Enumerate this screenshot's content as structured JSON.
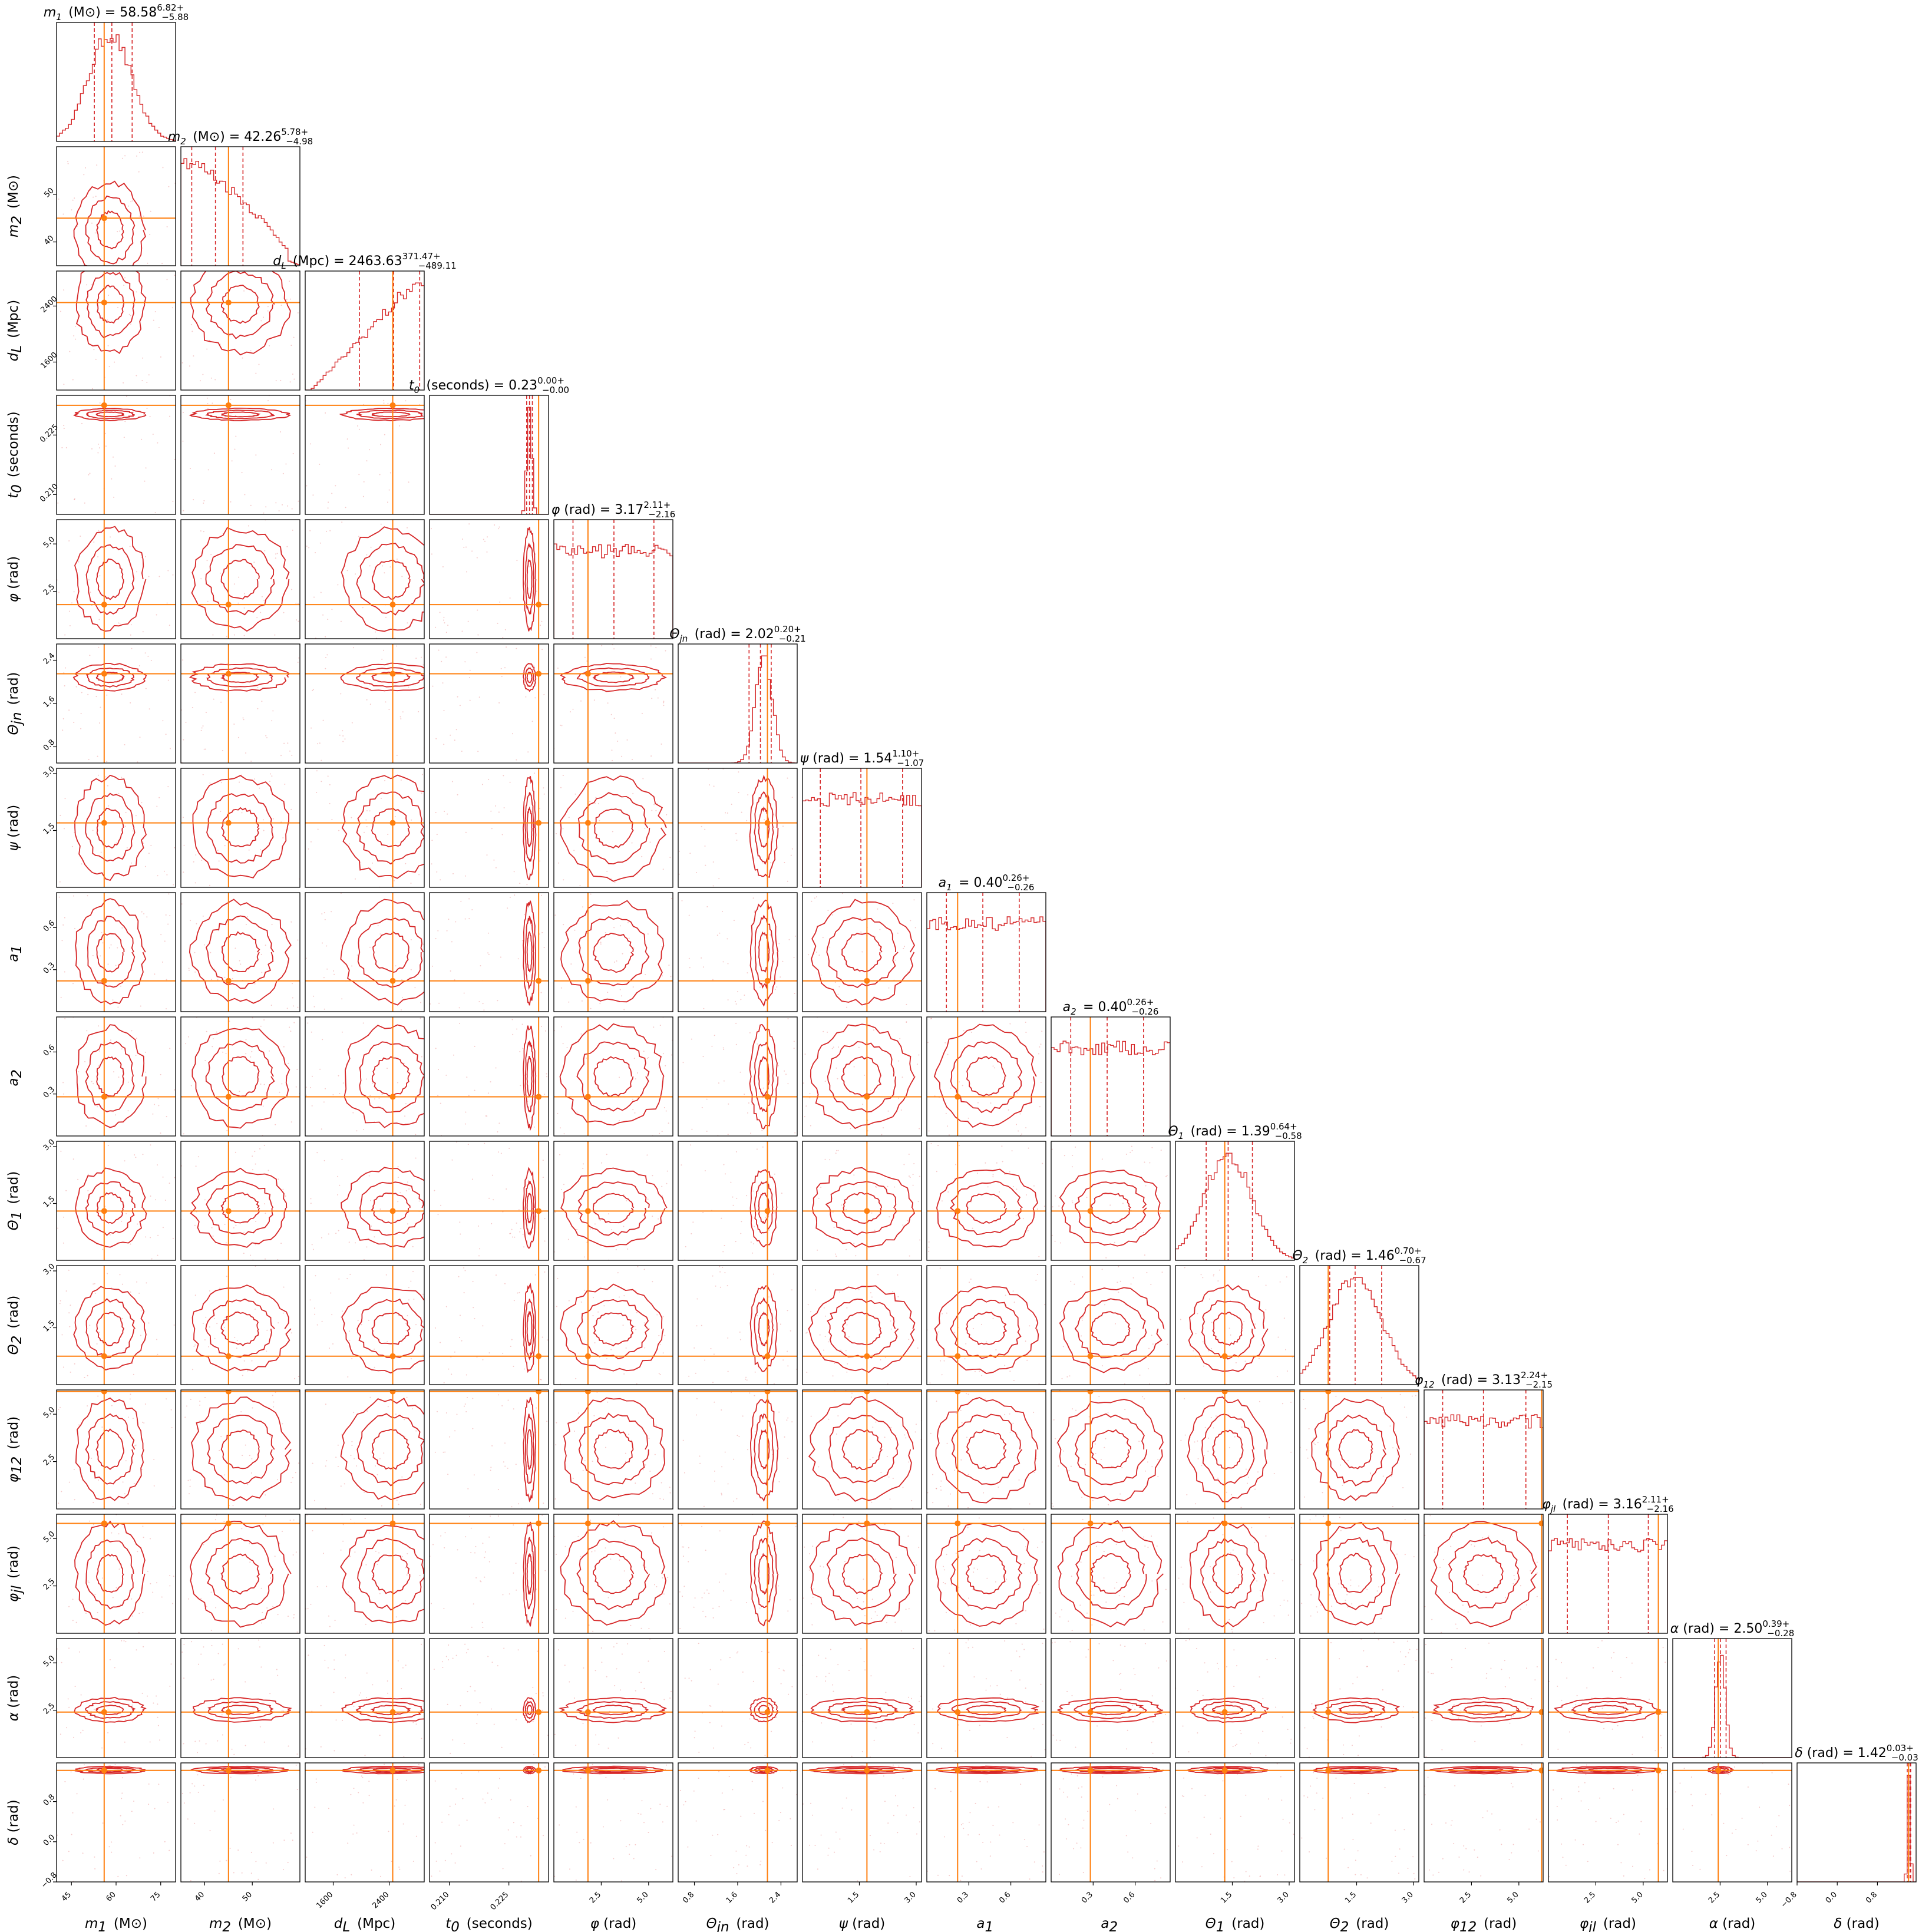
{
  "chart_data": {
    "type": "corner",
    "colors": {
      "posterior": "#d62728",
      "truth": "#ff7f0e",
      "frame": "#000000"
    },
    "parameters": [
      {
        "key": "m1",
        "symbol": "m",
        "sub": "1",
        "unit": "(M⊙)",
        "median": "58.58",
        "plus": "6.82",
        "minus": "5.88",
        "range": [
          40,
          80
        ],
        "truth": 56,
        "ticks": [
          "45",
          "60",
          "75"
        ],
        "shape": "peak",
        "peak": 0.45,
        "width": 0.18
      },
      {
        "key": "m2",
        "symbol": "m",
        "sub": "2",
        "unit": "(M⊙)",
        "median": "42.26",
        "plus": "5.78",
        "minus": "4.98",
        "range": [
          35,
          60
        ],
        "truth": 45,
        "ticks": [
          "40",
          "50"
        ],
        "shape": "decay"
      },
      {
        "key": "dL",
        "symbol": "d",
        "sub": "L",
        "unit": "(Mpc)",
        "median": "2463.63",
        "plus": "371.47",
        "minus": "489.11",
        "range": [
          1200,
          2900
        ],
        "truth": 2450,
        "ticks": [
          "1600",
          "2400"
        ],
        "shape": "rise"
      },
      {
        "key": "t0",
        "symbol": "t",
        "sub": "0",
        "unit": "(seconds)",
        "median": "0.23",
        "plus": "0.00",
        "minus": "0.00",
        "range": [
          0.205,
          0.235
        ],
        "truth": 0.2325,
        "ticks": [
          "0.210",
          "0.225"
        ],
        "shape": "spike",
        "peak": 0.84,
        "width": 0.02
      },
      {
        "key": "phi",
        "symbol": "φ",
        "sub": "",
        "unit": "(rad)",
        "median": "3.17",
        "plus": "2.11",
        "minus": "2.16",
        "range": [
          0,
          6.28
        ],
        "truth": 1.8,
        "ticks": [
          "2.5",
          "5.0"
        ],
        "shape": "flat"
      },
      {
        "key": "theta_jn",
        "symbol": "Θ",
        "sub": "jn",
        "unit": "(rad)",
        "median": "2.02",
        "plus": "0.20",
        "minus": "0.21",
        "range": [
          0.5,
          2.7
        ],
        "truth": 2.15,
        "ticks": [
          "0.8",
          "1.6",
          "2.4"
        ],
        "shape": "peak",
        "peak": 0.72,
        "width": 0.07
      },
      {
        "key": "psi",
        "symbol": "ψ",
        "sub": "",
        "unit": "(rad)",
        "median": "1.54",
        "plus": "1.10",
        "minus": "1.07",
        "range": [
          0,
          3.14
        ],
        "truth": 1.7,
        "ticks": [
          "1.5",
          "3.0"
        ],
        "shape": "flat"
      },
      {
        "key": "a1",
        "symbol": "a",
        "sub": "1",
        "unit": "",
        "median": "0.40",
        "plus": "0.26",
        "minus": "0.26",
        "range": [
          0,
          0.85
        ],
        "truth": 0.22,
        "ticks": [
          "0.3",
          "0.6"
        ],
        "shape": "flat"
      },
      {
        "key": "a2",
        "symbol": "a",
        "sub": "2",
        "unit": "",
        "median": "0.40",
        "plus": "0.26",
        "minus": "0.26",
        "range": [
          0,
          0.85
        ],
        "truth": 0.28,
        "ticks": [
          "0.3",
          "0.6"
        ],
        "shape": "flat"
      },
      {
        "key": "theta1",
        "symbol": "Θ",
        "sub": "1",
        "unit": "(rad)",
        "median": "1.39",
        "plus": "0.64",
        "minus": "0.58",
        "range": [
          0,
          3.14
        ],
        "truth": 1.3,
        "ticks": [
          "1.5",
          "3.0"
        ],
        "shape": "peak",
        "peak": 0.44,
        "width": 0.2
      },
      {
        "key": "theta2",
        "symbol": "Θ",
        "sub": "2",
        "unit": "(rad)",
        "median": "1.46",
        "plus": "0.70",
        "minus": "0.67",
        "range": [
          0,
          3.14
        ],
        "truth": 0.75,
        "ticks": [
          "1.5",
          "3.0"
        ],
        "shape": "peak",
        "peak": 0.47,
        "width": 0.22
      },
      {
        "key": "phi12",
        "symbol": "φ",
        "sub": "12",
        "unit": "(rad)",
        "median": "3.13",
        "plus": "2.24",
        "minus": "2.15",
        "range": [
          0,
          6.28
        ],
        "truth": 6.2,
        "ticks": [
          "2.5",
          "5.0"
        ],
        "shape": "flat"
      },
      {
        "key": "phi_jl",
        "symbol": "φ",
        "sub": "jl",
        "unit": "(rad)",
        "median": "3.16",
        "plus": "2.11",
        "minus": "2.16",
        "range": [
          0,
          6.28
        ],
        "truth": 5.8,
        "ticks": [
          "2.5",
          "5.0"
        ],
        "shape": "flat"
      },
      {
        "key": "alpha",
        "symbol": "α",
        "sub": "",
        "unit": "(rad)",
        "median": "2.50",
        "plus": "0.39",
        "minus": "0.28",
        "range": [
          0,
          6.28
        ],
        "truth": 2.4,
        "ticks": [
          "2.5",
          "5.0"
        ],
        "shape": "spike",
        "peak": 0.4,
        "width": 0.04
      },
      {
        "key": "delta",
        "symbol": "δ",
        "sub": "",
        "unit": "(rad)",
        "median": "1.42",
        "plus": "0.03",
        "minus": "0.03",
        "range": [
          -0.8,
          1.57
        ],
        "truth": 1.42,
        "ticks": [
          "−0.8",
          "0.0",
          "0.8"
        ],
        "shape": "spike",
        "peak": 0.94,
        "width": 0.012
      }
    ]
  }
}
